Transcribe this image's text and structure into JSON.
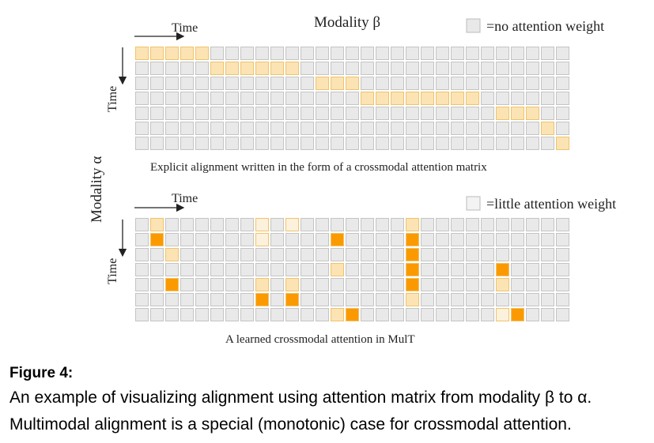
{
  "figure": {
    "top": {
      "time_x": "Time",
      "modality_beta": "Modality β",
      "legend": "=no attention weight",
      "time_y": "Time",
      "caption": "Explicit alignment written in the form of a crossmodal attention matrix"
    },
    "modality_alpha": "Modality α",
    "bottom": {
      "time_x": "Time",
      "legend": "=little attention weight",
      "time_y": "Time",
      "caption": "A learned crossmodal attention in MulT"
    }
  },
  "caption": {
    "label": "Figure 4:",
    "line1": "An example of visualizing alignment using attention matrix from modality β to α.",
    "line2": "Multimodal alignment is a special (monotonic) case for crossmodal attention."
  }
}
